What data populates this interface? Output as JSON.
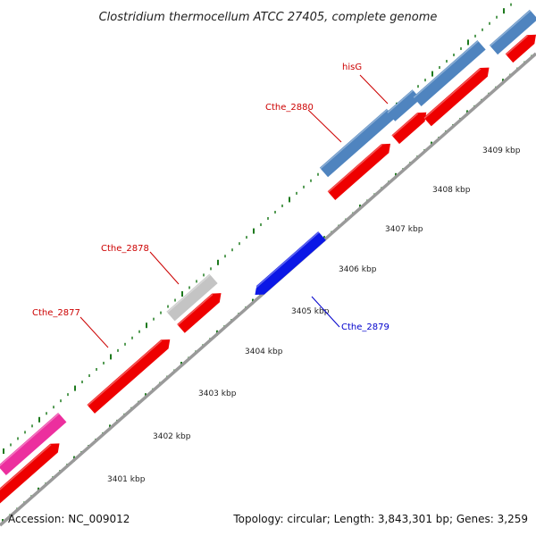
{
  "title": "Clostridium thermocellum ATCC 27405, complete genome",
  "footer": {
    "accession": "Accession: NC_009012",
    "summary": "Topology: circular; Length: 3,843,301 bp; Genes: 3,259"
  },
  "colors": {
    "backbone": "#9a9a9a",
    "tick": "#1e7a1e",
    "gene_red": "#ee0000",
    "gene_blue": "#0b17e6",
    "gene_steel": "#4f84bf",
    "gene_gray": "#c4c4c4",
    "gene_pink": "#ec2f9e",
    "label_red": "#cc0000",
    "label_blue": "#0000cc"
  },
  "scale_labels": [
    "3401 kbp",
    "3402 kbp",
    "3403 kbp",
    "3404 kbp",
    "3405 kbp",
    "3406 kbp",
    "3407 kbp",
    "3408 kbp",
    "3409 kbp"
  ],
  "gene_labels": [
    {
      "text": "hisG",
      "color": "red"
    },
    {
      "text": "Cthe_2880",
      "color": "red"
    },
    {
      "text": "Cthe_2878",
      "color": "red"
    },
    {
      "text": "Cthe_2877",
      "color": "red"
    },
    {
      "text": "Cthe_2879",
      "color": "blue"
    }
  ]
}
